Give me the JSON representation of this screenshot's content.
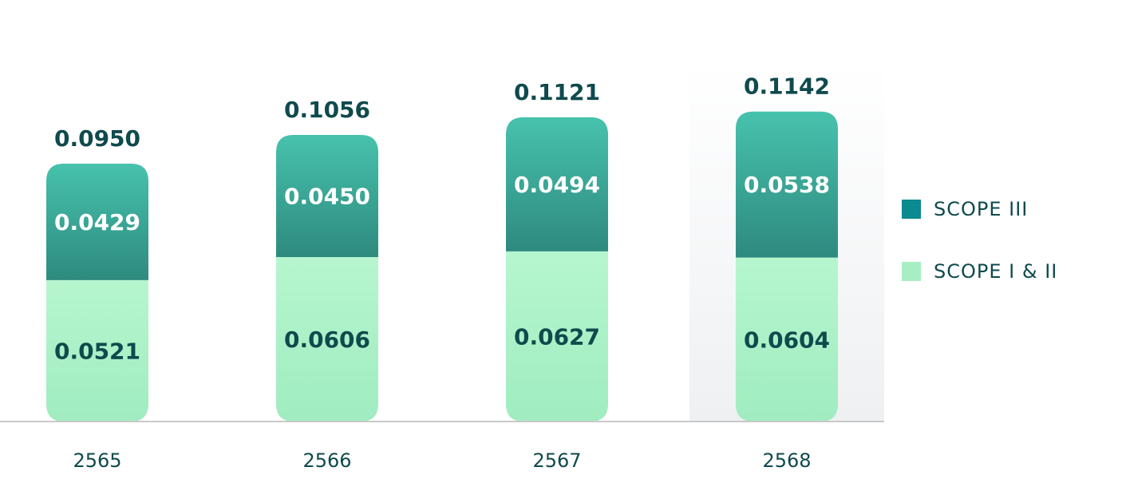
{
  "chart_data": {
    "type": "bar",
    "stacked": true,
    "categories": [
      "2565",
      "2566",
      "2567",
      "2568"
    ],
    "series": [
      {
        "name": "SCOPE I & II",
        "values": [
          0.0521,
          0.0606,
          0.0627,
          0.0604
        ],
        "color": "#a8eec4"
      },
      {
        "name": "SCOPE III",
        "values": [
          0.0429,
          0.045,
          0.0494,
          0.0538
        ],
        "color": "#2e9585"
      }
    ],
    "totals": [
      0.095,
      0.1056,
      0.1121,
      0.1142
    ],
    "value_labels": {
      "scope12": [
        "0.0521",
        "0.0606",
        "0.0627",
        "0.0604"
      ],
      "scope3": [
        "0.0429",
        "0.0450",
        "0.0494",
        "0.0538"
      ],
      "totals": [
        "0.0950",
        "0.1056",
        "0.1121",
        "0.1142"
      ]
    },
    "highlighted_category": "2568",
    "legend_position": "right",
    "grid": false
  },
  "legend": {
    "items": [
      {
        "label": "SCOPE III",
        "color": "#0b8a8f"
      },
      {
        "label": "SCOPE I & II",
        "color": "#a8eec4"
      }
    ]
  }
}
